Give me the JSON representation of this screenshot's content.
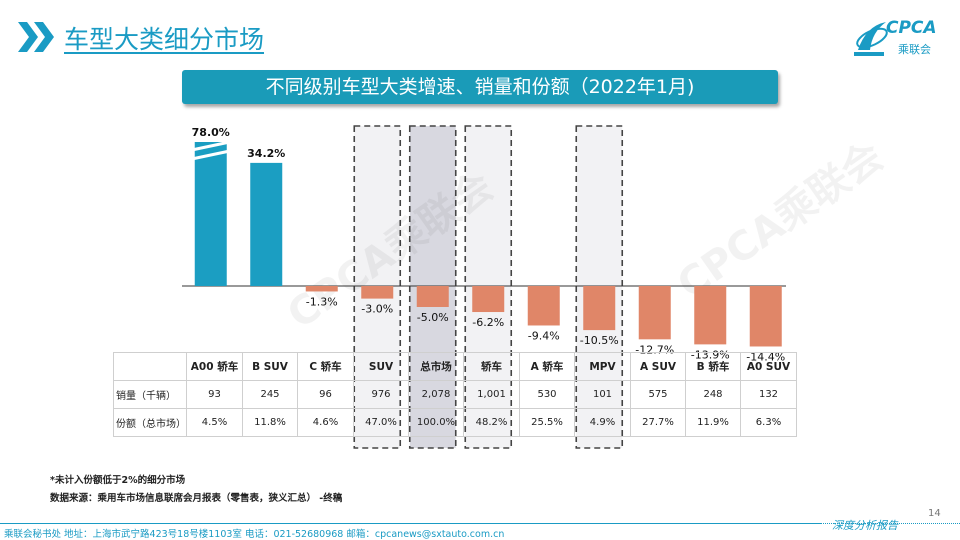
{
  "page_title": "车型大类细分市场",
  "logo": {
    "text": "CPCA",
    "subtext": "乘联会"
  },
  "banner_title": "不同级别车型大类增速、销量和份额（2022年1月)",
  "colors": {
    "positive": "#1b9ec2",
    "negative": "#e08668",
    "accent": "#1a9bc4",
    "highlight_gray": "#d8d8e0",
    "highlight_light": "#f2f2f4"
  },
  "chart_data": {
    "type": "bar",
    "categories": [
      "A00 轿车",
      "B SUV",
      "C 轿车",
      "SUV",
      "总市场",
      "轿车",
      "A 轿车",
      "MPV",
      "A SUV",
      "B 轿车",
      "A0 SUV"
    ],
    "values": [
      78.0,
      34.2,
      -1.3,
      -3.0,
      -5.0,
      -6.2,
      -9.4,
      -10.5,
      -12.7,
      -13.9,
      -14.4
    ],
    "value_labels": [
      "78.0%",
      "34.2%",
      "-1.3%",
      "-3.0%",
      "-5.0%",
      "-6.2%",
      "-9.4%",
      "-10.5%",
      "-12.7%",
      "-13.9%",
      "-14.4%"
    ],
    "axis_break_category": "A00 轿车",
    "highlighted_categories": [
      "SUV",
      "总市场",
      "轿车",
      "MPV"
    ],
    "grid": false,
    "legend": "none"
  },
  "table": {
    "header": [
      "",
      "A00 轿车",
      "B SUV",
      "C 轿车",
      "SUV",
      "总市场",
      "轿车",
      "A 轿车",
      "MPV",
      "A SUV",
      "B 轿车",
      "A0 SUV"
    ],
    "rows": [
      [
        "销量（千辆）",
        "93",
        "245",
        "96",
        "976",
        "2,078",
        "1,001",
        "530",
        "101",
        "575",
        "248",
        "132"
      ],
      [
        "份额（总市场）",
        "4.5%",
        "11.8%",
        "4.6%",
        "47.0%",
        "100.0%",
        "48.2%",
        "25.5%",
        "4.9%",
        "27.7%",
        "11.9%",
        "6.3%"
      ]
    ]
  },
  "note": "*未计入份额低于2%的细分市场",
  "source": "数据来源：乘用车市场信息联席会月报表（零售表，狭义汇总） -终稿",
  "page_number": "14",
  "footer_text": "乘联会秘书处   地址：上海市武宁路423号18号楼1103室   电话：021-52680968   邮箱：cpcanews@sxtauto.com.cn",
  "footer_slogan": "深度分析报告",
  "watermark": "CPCA乘联会"
}
